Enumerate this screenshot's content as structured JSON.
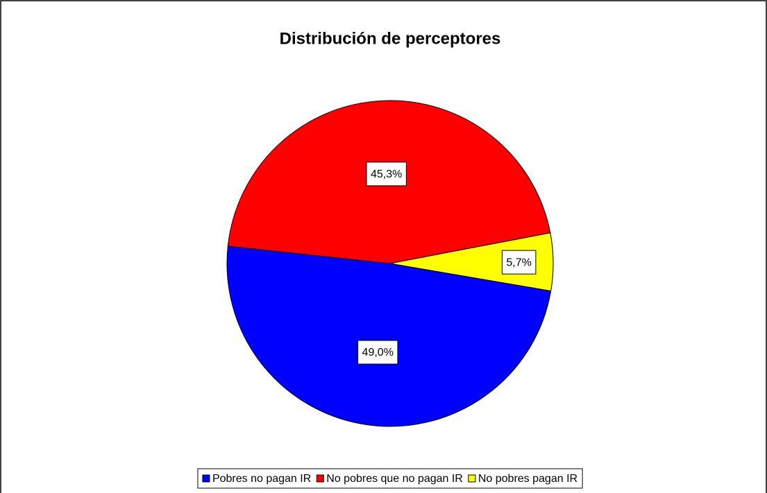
{
  "chart_data": {
    "type": "pie",
    "title": "Distribución de perceptores",
    "categories": [
      "Pobres no pagan IR",
      "No pobres que no pagan IR",
      "No pobres pagan IR"
    ],
    "values": [
      49.0,
      45.3,
      5.7
    ],
    "value_labels": [
      "49,0%",
      "45,3%",
      "5,7%"
    ],
    "colors": [
      "#0000ff",
      "#ff0000",
      "#ffff00"
    ],
    "legend": "bottom"
  }
}
